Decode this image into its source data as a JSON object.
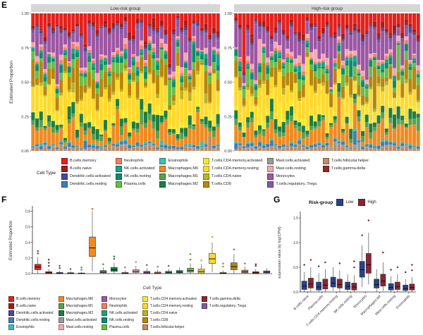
{
  "figure": {
    "panel_e_label": "E",
    "panel_f_label": "F",
    "panel_g_label": "G"
  },
  "cell_types": [
    {
      "name": "B.cells.memory",
      "color": "#E3211C"
    },
    {
      "name": "B.cells.naive",
      "color": "#A01C20"
    },
    {
      "name": "Dendritic.cells.activated",
      "color": "#454A9C"
    },
    {
      "name": "Dendritic.cells.resting",
      "color": "#3F7DB8"
    },
    {
      "name": "Eosinophils",
      "color": "#3FBFB2"
    },
    {
      "name": "Macrophages.M0",
      "color": "#F08A21"
    },
    {
      "name": "Macrophages.M1",
      "color": "#59A14E"
    },
    {
      "name": "Macrophages.M2",
      "color": "#1D7D46"
    },
    {
      "name": "Mast.cells.activated",
      "color": "#9B9B9B"
    },
    {
      "name": "Mast.cells.resting",
      "color": "#F2A7B4"
    },
    {
      "name": "Monocytes",
      "color": "#9C56A3"
    },
    {
      "name": "Neutrophils",
      "color": "#F08060"
    },
    {
      "name": "NK.cells.activated",
      "color": "#17A589"
    },
    {
      "name": "NK.cells.resting",
      "color": "#0E8C6B"
    },
    {
      "name": "Plasma.cells",
      "color": "#6ABD45"
    },
    {
      "name": "T.cells.CD4.memory.activated",
      "color": "#F5E633"
    },
    {
      "name": "T.cells.CD4.memory.resting",
      "color": "#FFD92B"
    },
    {
      "name": "T.cells.CD4.naive",
      "color": "#BDB226"
    },
    {
      "name": "T.cells.CD8",
      "color": "#B8860B"
    },
    {
      "name": "T.cells.follicular.helper",
      "color": "#C08B66"
    },
    {
      "name": "T.cells.gamma.delta",
      "color": "#93282C"
    },
    {
      "name": "T.cells.regulatory..Tregs.",
      "color": "#7D5BA6"
    }
  ],
  "legend_e": {
    "title": "Cell Type",
    "columns": [
      [
        "B.cells.memory",
        "B.cells.naive",
        "Dendritic.cells.activated",
        "Dendritic.cells.resting"
      ],
      [
        "Neutrophils",
        "NK.cells.activated",
        "NK.cells.resting",
        "Plasma.cells"
      ],
      [
        "Eosinophils",
        "Macrophages.M0",
        "Macrophages.M1",
        "Macrophages.M2"
      ],
      [
        "T.cells.CD4.memory.activated",
        "T.cells.CD4.memory.resting",
        "T.cells.CD4.naive",
        "T.cells.CD8"
      ],
      [
        "Mast.cells.activated",
        "Mast.cells.resting",
        "Monocytes",
        "T.cells.regulatory..Tregs."
      ],
      [
        "T.cells.follicular.helper",
        "T.cells.gamma.delta"
      ]
    ]
  },
  "legend_f": {
    "columns": [
      [
        "B.cells.memory",
        "B.cells.naive",
        "Dendritic.cells.activated",
        "Dendritic.cells.resting",
        "Eosinophils"
      ],
      [
        "Macrophages.M0",
        "Macrophages.M1",
        "Macrophages.M2",
        "Mast.cells.activated",
        "Mast.cells.resting"
      ],
      [
        "Monocytes",
        "Neutrophils",
        "NK.cells.activated",
        "NK.cells.resting",
        "Plasma.cells"
      ],
      [
        "T.cells.CD4.memory.activated",
        "T.cells.CD4.memory.resting",
        "T.cells.CD4.naive",
        "T.cells.CD8",
        "T.cells.follicular.helper"
      ],
      [
        "T.cells.gamma.delta",
        "T.cells.regulatory..Tregs."
      ]
    ]
  },
  "chart_data": [
    {
      "id": "E",
      "type": "bar",
      "subtype": "stacked-proportion-bars",
      "facets": [
        "Low-risk group",
        "High-risk group"
      ],
      "ylabel": "Estimated Proportion",
      "ylim": [
        0,
        1
      ],
      "yticks": [
        0,
        0.25,
        0.5,
        0.75,
        1
      ],
      "ytick_labels": [
        "0.00",
        "0.25",
        "0.50",
        "0.75",
        "1.00"
      ],
      "bars_per_facet": 47,
      "seed": 42,
      "stack_order_top_to_bottom": [
        "B.cells.memory",
        "B.cells.naive",
        "T.cells.gamma.delta",
        "Dendritic.cells.activated",
        "T.cells.regulatory..Tregs.",
        "Monocytes",
        "Mast.cells.resting",
        "Neutrophils",
        "NK.cells.activated",
        "NK.cells.resting",
        "Plasma.cells",
        "T.cells.CD8",
        "T.cells.CD4.naive",
        "T.cells.CD4.memory.resting",
        "T.cells.CD4.memory.activated",
        "Macrophages.M2",
        "Macrophages.M1",
        "Macrophages.M0",
        "Eosinophils",
        "Dendritic.cells.resting",
        "Mast.cells.activated",
        "T.cells.follicular.helper"
      ],
      "mean_proportions": {
        "B.cells.memory": 0.1,
        "B.cells.naive": 0.02,
        "Dendritic.cells.activated": 0.01,
        "Dendritic.cells.resting": 0.015,
        "Eosinophils": 0.01,
        "Macrophages.M0": 0.1,
        "Macrophages.M1": 0.03,
        "Macrophages.M2": 0.05,
        "Mast.cells.activated": 0.01,
        "Mast.cells.resting": 0.03,
        "Monocytes": 0.14,
        "Neutrophils": 0.02,
        "NK.cells.activated": 0.02,
        "NK.cells.resting": 0.03,
        "Plasma.cells": 0.05,
        "T.cells.CD4.memory.activated": 0.04,
        "T.cells.CD4.memory.resting": 0.16,
        "T.cells.CD4.naive": 0.015,
        "T.cells.CD8": 0.09,
        "T.cells.follicular.helper": 0.02,
        "T.cells.gamma.delta": 0.01,
        "T.cells.regulatory..Tregs.": 0.02
      }
    },
    {
      "id": "F",
      "type": "box",
      "xlabel": "Cell Type",
      "ylabel": "Estimated Proportion",
      "ylim": [
        0,
        0.85
      ],
      "yticks": [
        0,
        0.2,
        0.4,
        0.6,
        0.8
      ],
      "ytick_labels": [
        "0.0",
        "0.2",
        "0.4",
        "0.6",
        "0.8"
      ],
      "boxes": [
        {
          "cell": "B.cells.memory",
          "lo": 0.0,
          "q1": 0.05,
          "med": 0.085,
          "q3": 0.12,
          "hi": 0.21,
          "outliers": [
            0.26,
            0.29
          ]
        },
        {
          "cell": "B.cells.naive",
          "lo": 0.0,
          "q1": 0.0,
          "med": 0.01,
          "q3": 0.025,
          "hi": 0.06,
          "outliers": [
            0.1,
            0.14,
            0.18
          ]
        },
        {
          "cell": "Dendritic.cells.activated",
          "lo": 0.0,
          "q1": 0.0,
          "med": 0.005,
          "q3": 0.015,
          "hi": 0.035,
          "outliers": [
            0.07,
            0.1
          ]
        },
        {
          "cell": "Dendritic.cells.resting",
          "lo": 0.0,
          "q1": 0.0,
          "med": 0.004,
          "q3": 0.012,
          "hi": 0.03,
          "outliers": [
            0.06
          ]
        },
        {
          "cell": "Eosinophils",
          "lo": 0.0,
          "q1": 0.0,
          "med": 0.002,
          "q3": 0.008,
          "hi": 0.02,
          "outliers": [
            0.05,
            0.08
          ]
        },
        {
          "cell": "Macrophages.M0",
          "lo": 0.03,
          "q1": 0.22,
          "med": 0.33,
          "q3": 0.47,
          "hi": 0.8,
          "outliers": [
            0.83
          ]
        },
        {
          "cell": "Macrophages.M1",
          "lo": 0.0,
          "q1": 0.01,
          "med": 0.02,
          "q3": 0.04,
          "hi": 0.08,
          "outliers": [
            0.12
          ]
        },
        {
          "cell": "Macrophages.M2",
          "lo": 0.0,
          "q1": 0.03,
          "med": 0.05,
          "q3": 0.08,
          "hi": 0.14,
          "outliers": [
            0.19,
            0.22
          ]
        },
        {
          "cell": "Mast.cells.activated",
          "lo": 0.0,
          "q1": 0.0,
          "med": 0.005,
          "q3": 0.015,
          "hi": 0.04,
          "outliers": [
            0.08
          ]
        },
        {
          "cell": "Mast.cells.resting",
          "lo": 0.0,
          "q1": 0.015,
          "med": 0.03,
          "q3": 0.05,
          "hi": 0.1,
          "outliers": [
            0.15
          ]
        },
        {
          "cell": "Monocytes",
          "lo": 0.0,
          "q1": 0.005,
          "med": 0.01,
          "q3": 0.03,
          "hi": 0.07,
          "outliers": [
            0.11
          ]
        },
        {
          "cell": "Neutrophils",
          "lo": 0.0,
          "q1": 0.0,
          "med": 0.008,
          "q3": 0.02,
          "hi": 0.05,
          "outliers": [
            0.09
          ]
        },
        {
          "cell": "NK.cells.activated",
          "lo": 0.0,
          "q1": 0.005,
          "med": 0.015,
          "q3": 0.03,
          "hi": 0.06,
          "outliers": [
            0.1
          ]
        },
        {
          "cell": "NK.cells.resting",
          "lo": 0.0,
          "q1": 0.01,
          "med": 0.02,
          "q3": 0.04,
          "hi": 0.08,
          "outliers": []
        },
        {
          "cell": "Plasma.cells",
          "lo": 0.0,
          "q1": 0.02,
          "med": 0.04,
          "q3": 0.07,
          "hi": 0.13,
          "outliers": [
            0.18,
            0.25
          ]
        },
        {
          "cell": "T.cells.CD4.memory.activated",
          "lo": 0.0,
          "q1": 0.01,
          "med": 0.03,
          "q3": 0.06,
          "hi": 0.12,
          "outliers": [
            0.17
          ]
        },
        {
          "cell": "T.cells.CD4.memory.resting",
          "lo": 0.02,
          "q1": 0.13,
          "med": 0.19,
          "q3": 0.26,
          "hi": 0.4,
          "outliers": [
            0.47
          ]
        },
        {
          "cell": "T.cells.CD4.naive",
          "lo": 0.0,
          "q1": 0.0,
          "med": 0.005,
          "q3": 0.015,
          "hi": 0.04,
          "outliers": [
            0.09,
            0.13
          ]
        },
        {
          "cell": "T.cells.CD8",
          "lo": 0.0,
          "q1": 0.05,
          "med": 0.09,
          "q3": 0.14,
          "hi": 0.25,
          "outliers": [
            0.31
          ]
        },
        {
          "cell": "T.cells.follicular.helper",
          "lo": 0.0,
          "q1": 0.01,
          "med": 0.025,
          "q3": 0.045,
          "hi": 0.09,
          "outliers": [
            0.13
          ]
        },
        {
          "cell": "T.cells.gamma.delta",
          "lo": 0.0,
          "q1": 0.0,
          "med": 0.01,
          "q3": 0.025,
          "hi": 0.06,
          "outliers": [
            0.1,
            0.12
          ]
        },
        {
          "cell": "T.cells.regulatory..Tregs.",
          "lo": 0.0,
          "q1": 0.01,
          "med": 0.02,
          "q3": 0.035,
          "hi": 0.07,
          "outliers": []
        }
      ]
    },
    {
      "id": "G",
      "type": "box",
      "subtype": "grouped-box",
      "legend_title": "Risk-group",
      "groups": [
        {
          "name": "Low",
          "color": "#27418B"
        },
        {
          "name": "High",
          "color": "#8B2332"
        }
      ],
      "ylabel": "expression value by log(CPM)",
      "ylim": [
        0,
        1.6
      ],
      "yticks": [
        0,
        0.5,
        1.0,
        1.5
      ],
      "ytick_labels": [
        "0.0",
        "0.5",
        "1.0",
        "1.5"
      ],
      "categories": [
        "B.cells.naive",
        "Plasma.cells",
        "T.cells.CD4.memory.resting",
        "NK.cells.resting",
        "Monocytes",
        "Macrophages.M2",
        "Mast.cells.resting",
        "Eosinophils"
      ],
      "boxes": [
        {
          "cat": "B.cells.naive",
          "low": {
            "lo": 0.0,
            "q1": 0.05,
            "med": 0.12,
            "q3": 0.22,
            "hi": 0.4,
            "outliers": [
              0.55
            ]
          },
          "high": {
            "lo": 0.0,
            "q1": 0.08,
            "med": 0.16,
            "q3": 0.28,
            "hi": 0.5,
            "outliers": [
              0.65
            ]
          }
        },
        {
          "cat": "Plasma.cells",
          "low": {
            "lo": 0.0,
            "q1": 0.04,
            "med": 0.1,
            "q3": 0.2,
            "hi": 0.38,
            "outliers": [
              0.52
            ]
          },
          "high": {
            "lo": 0.0,
            "q1": 0.06,
            "med": 0.14,
            "q3": 0.26,
            "hi": 0.46,
            "outliers": [
              0.6
            ]
          }
        },
        {
          "cat": "T.cells.CD4.memory.resting",
          "low": {
            "lo": 0.02,
            "q1": 0.1,
            "med": 0.18,
            "q3": 0.3,
            "hi": 0.5,
            "outliers": []
          },
          "high": {
            "lo": 0.0,
            "q1": 0.08,
            "med": 0.15,
            "q3": 0.26,
            "hi": 0.44,
            "outliers": [
              0.58
            ]
          }
        },
        {
          "cat": "NK.cells.resting",
          "low": {
            "lo": 0.0,
            "q1": 0.05,
            "med": 0.11,
            "q3": 0.2,
            "hi": 0.36,
            "outliers": []
          },
          "high": {
            "lo": 0.0,
            "q1": 0.04,
            "med": 0.1,
            "q3": 0.18,
            "hi": 0.34,
            "outliers": [
              0.5,
              0.62
            ]
          }
        },
        {
          "cat": "Monocytes",
          "low": {
            "lo": 0.1,
            "q1": 0.3,
            "med": 0.45,
            "q3": 0.62,
            "hi": 0.95,
            "outliers": [
              1.15
            ]
          },
          "high": {
            "lo": 0.15,
            "q1": 0.38,
            "med": 0.55,
            "q3": 0.78,
            "hi": 1.2,
            "outliers": [
              1.45
            ]
          }
        },
        {
          "cat": "Macrophages.M2",
          "low": {
            "lo": 0.0,
            "q1": 0.08,
            "med": 0.15,
            "q3": 0.26,
            "hi": 0.46,
            "outliers": []
          },
          "high": {
            "lo": 0.02,
            "q1": 0.12,
            "med": 0.22,
            "q3": 0.36,
            "hi": 0.6,
            "outliers": [
              0.8
            ]
          }
        },
        {
          "cat": "Mast.cells.resting",
          "low": {
            "lo": 0.0,
            "q1": 0.04,
            "med": 0.09,
            "q3": 0.17,
            "hi": 0.32,
            "outliers": [
              0.45
            ]
          },
          "high": {
            "lo": 0.0,
            "q1": 0.05,
            "med": 0.11,
            "q3": 0.2,
            "hi": 0.36,
            "outliers": [
              0.5
            ]
          }
        },
        {
          "cat": "Eosinophils",
          "low": {
            "lo": 0.0,
            "q1": 0.03,
            "med": 0.07,
            "q3": 0.14,
            "hi": 0.26,
            "outliers": [
              0.4
            ]
          },
          "high": {
            "lo": 0.0,
            "q1": 0.04,
            "med": 0.09,
            "q3": 0.16,
            "hi": 0.3,
            "outliers": [
              0.44,
              0.55
            ]
          }
        }
      ]
    }
  ]
}
